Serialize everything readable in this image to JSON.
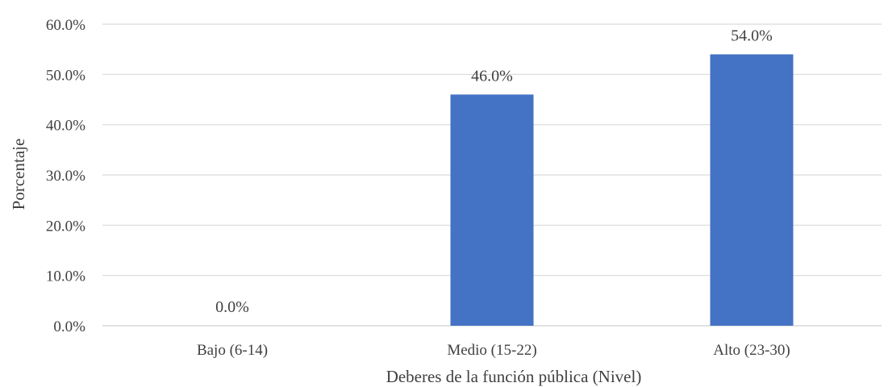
{
  "chart_data": {
    "type": "bar",
    "categories": [
      "Bajo (6-14)",
      "Medio (15-22)",
      "Alto (23-30)"
    ],
    "values": [
      0.0,
      46.0,
      54.0
    ],
    "value_labels": [
      "0.0%",
      "46.0%",
      "54.0%"
    ],
    "title": "",
    "xlabel": "Deberes de la función pública (Nivel)",
    "ylabel": "Porcentaje",
    "ylim": [
      0,
      60
    ],
    "yticks": [
      0,
      10,
      20,
      30,
      40,
      50,
      60
    ],
    "ytick_labels": [
      "0.0%",
      "10.0%",
      "20.0%",
      "30.0%",
      "40.0%",
      "50.0%",
      "60.0%"
    ],
    "grid": true,
    "legend": "none",
    "bar_color": "#4472c4"
  }
}
